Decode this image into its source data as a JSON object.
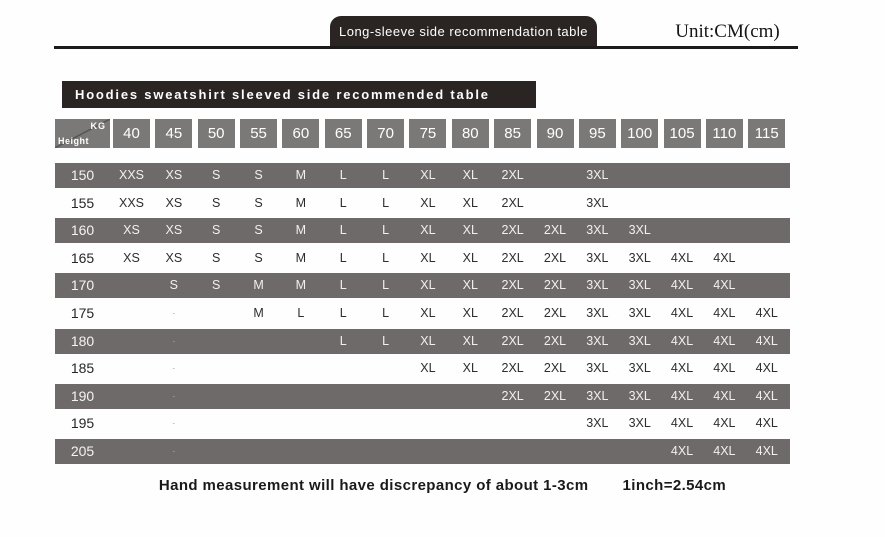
{
  "header": {
    "tab_title": "Long-sleeve side recommendation table",
    "unit_label": "Unit:CM(cm)"
  },
  "banner": {
    "title": "Hoodies sweatshirt sleeved side recommended table"
  },
  "table": {
    "corner": {
      "top_label": "KG",
      "bottom_label": "Height"
    },
    "weights": [
      "40",
      "45",
      "50",
      "55",
      "60",
      "65",
      "70",
      "75",
      "80",
      "85",
      "90",
      "95",
      "100",
      "105",
      "110",
      "115"
    ],
    "rows": [
      {
        "height": "150",
        "dark": true,
        "cells": [
          "XXS",
          "XS",
          "S",
          "S",
          "M",
          "L",
          "L",
          "XL",
          "XL",
          "2XL",
          "",
          "3XL",
          "",
          "",
          "",
          ""
        ]
      },
      {
        "height": "155",
        "dark": false,
        "cells": [
          "XXS",
          "XS",
          "S",
          "S",
          "M",
          "L",
          "L",
          "XL",
          "XL",
          "2XL",
          "",
          "3XL",
          "",
          "",
          "",
          ""
        ]
      },
      {
        "height": "160",
        "dark": true,
        "cells": [
          "XS",
          "XS",
          "S",
          "S",
          "M",
          "L",
          "L",
          "XL",
          "XL",
          "2XL",
          "2XL",
          "3XL",
          "3XL",
          "",
          "",
          ""
        ]
      },
      {
        "height": "165",
        "dark": false,
        "cells": [
          "XS",
          "XS",
          "S",
          "S",
          "M",
          "L",
          "L",
          "XL",
          "XL",
          "2XL",
          "2XL",
          "3XL",
          "3XL",
          "4XL",
          "4XL",
          ""
        ]
      },
      {
        "height": "170",
        "dark": true,
        "cells": [
          "",
          "S",
          "S",
          "M",
          "M",
          "L",
          "L",
          "XL",
          "XL",
          "2XL",
          "2XL",
          "3XL",
          "3XL",
          "4XL",
          "4XL",
          ""
        ]
      },
      {
        "height": "175",
        "dark": false,
        "cells": [
          "",
          "·",
          "",
          "M",
          "L",
          "L",
          "L",
          "XL",
          "XL",
          "2XL",
          "2XL",
          "3XL",
          "3XL",
          "4XL",
          "4XL",
          "4XL"
        ]
      },
      {
        "height": "180",
        "dark": true,
        "cells": [
          "",
          "·",
          "",
          "",
          "",
          "L",
          "L",
          "XL",
          "XL",
          "2XL",
          "2XL",
          "3XL",
          "3XL",
          "4XL",
          "4XL",
          "4XL"
        ]
      },
      {
        "height": "185",
        "dark": false,
        "cells": [
          "",
          "·",
          "",
          "",
          "",
          "",
          "",
          "XL",
          "XL",
          "2XL",
          "2XL",
          "3XL",
          "3XL",
          "4XL",
          "4XL",
          "4XL"
        ]
      },
      {
        "height": "190",
        "dark": true,
        "cells": [
          "",
          "·",
          "",
          "",
          "",
          "",
          "",
          "",
          "",
          "2XL",
          "2XL",
          "3XL",
          "3XL",
          "4XL",
          "4XL",
          "4XL"
        ]
      },
      {
        "height": "195",
        "dark": false,
        "cells": [
          "",
          "·",
          "",
          "",
          "",
          "",
          "",
          "",
          "",
          "",
          "",
          "3XL",
          "3XL",
          "4XL",
          "4XL",
          "4XL"
        ]
      },
      {
        "height": "205",
        "dark": true,
        "cells": [
          "",
          "·",
          "",
          "",
          "",
          "",
          "",
          "",
          "",
          "",
          "",
          "",
          "",
          "4XL",
          "4XL",
          "4XL"
        ]
      }
    ]
  },
  "footer": {
    "note_left": "Hand measurement will have discrepancy of about 1-3cm",
    "note_right": "1inch=2.54cm"
  },
  "colors": {
    "dark_banner": "#2a2523",
    "header_cell": "#7b7878",
    "row_bar": "#6e6a6a"
  }
}
